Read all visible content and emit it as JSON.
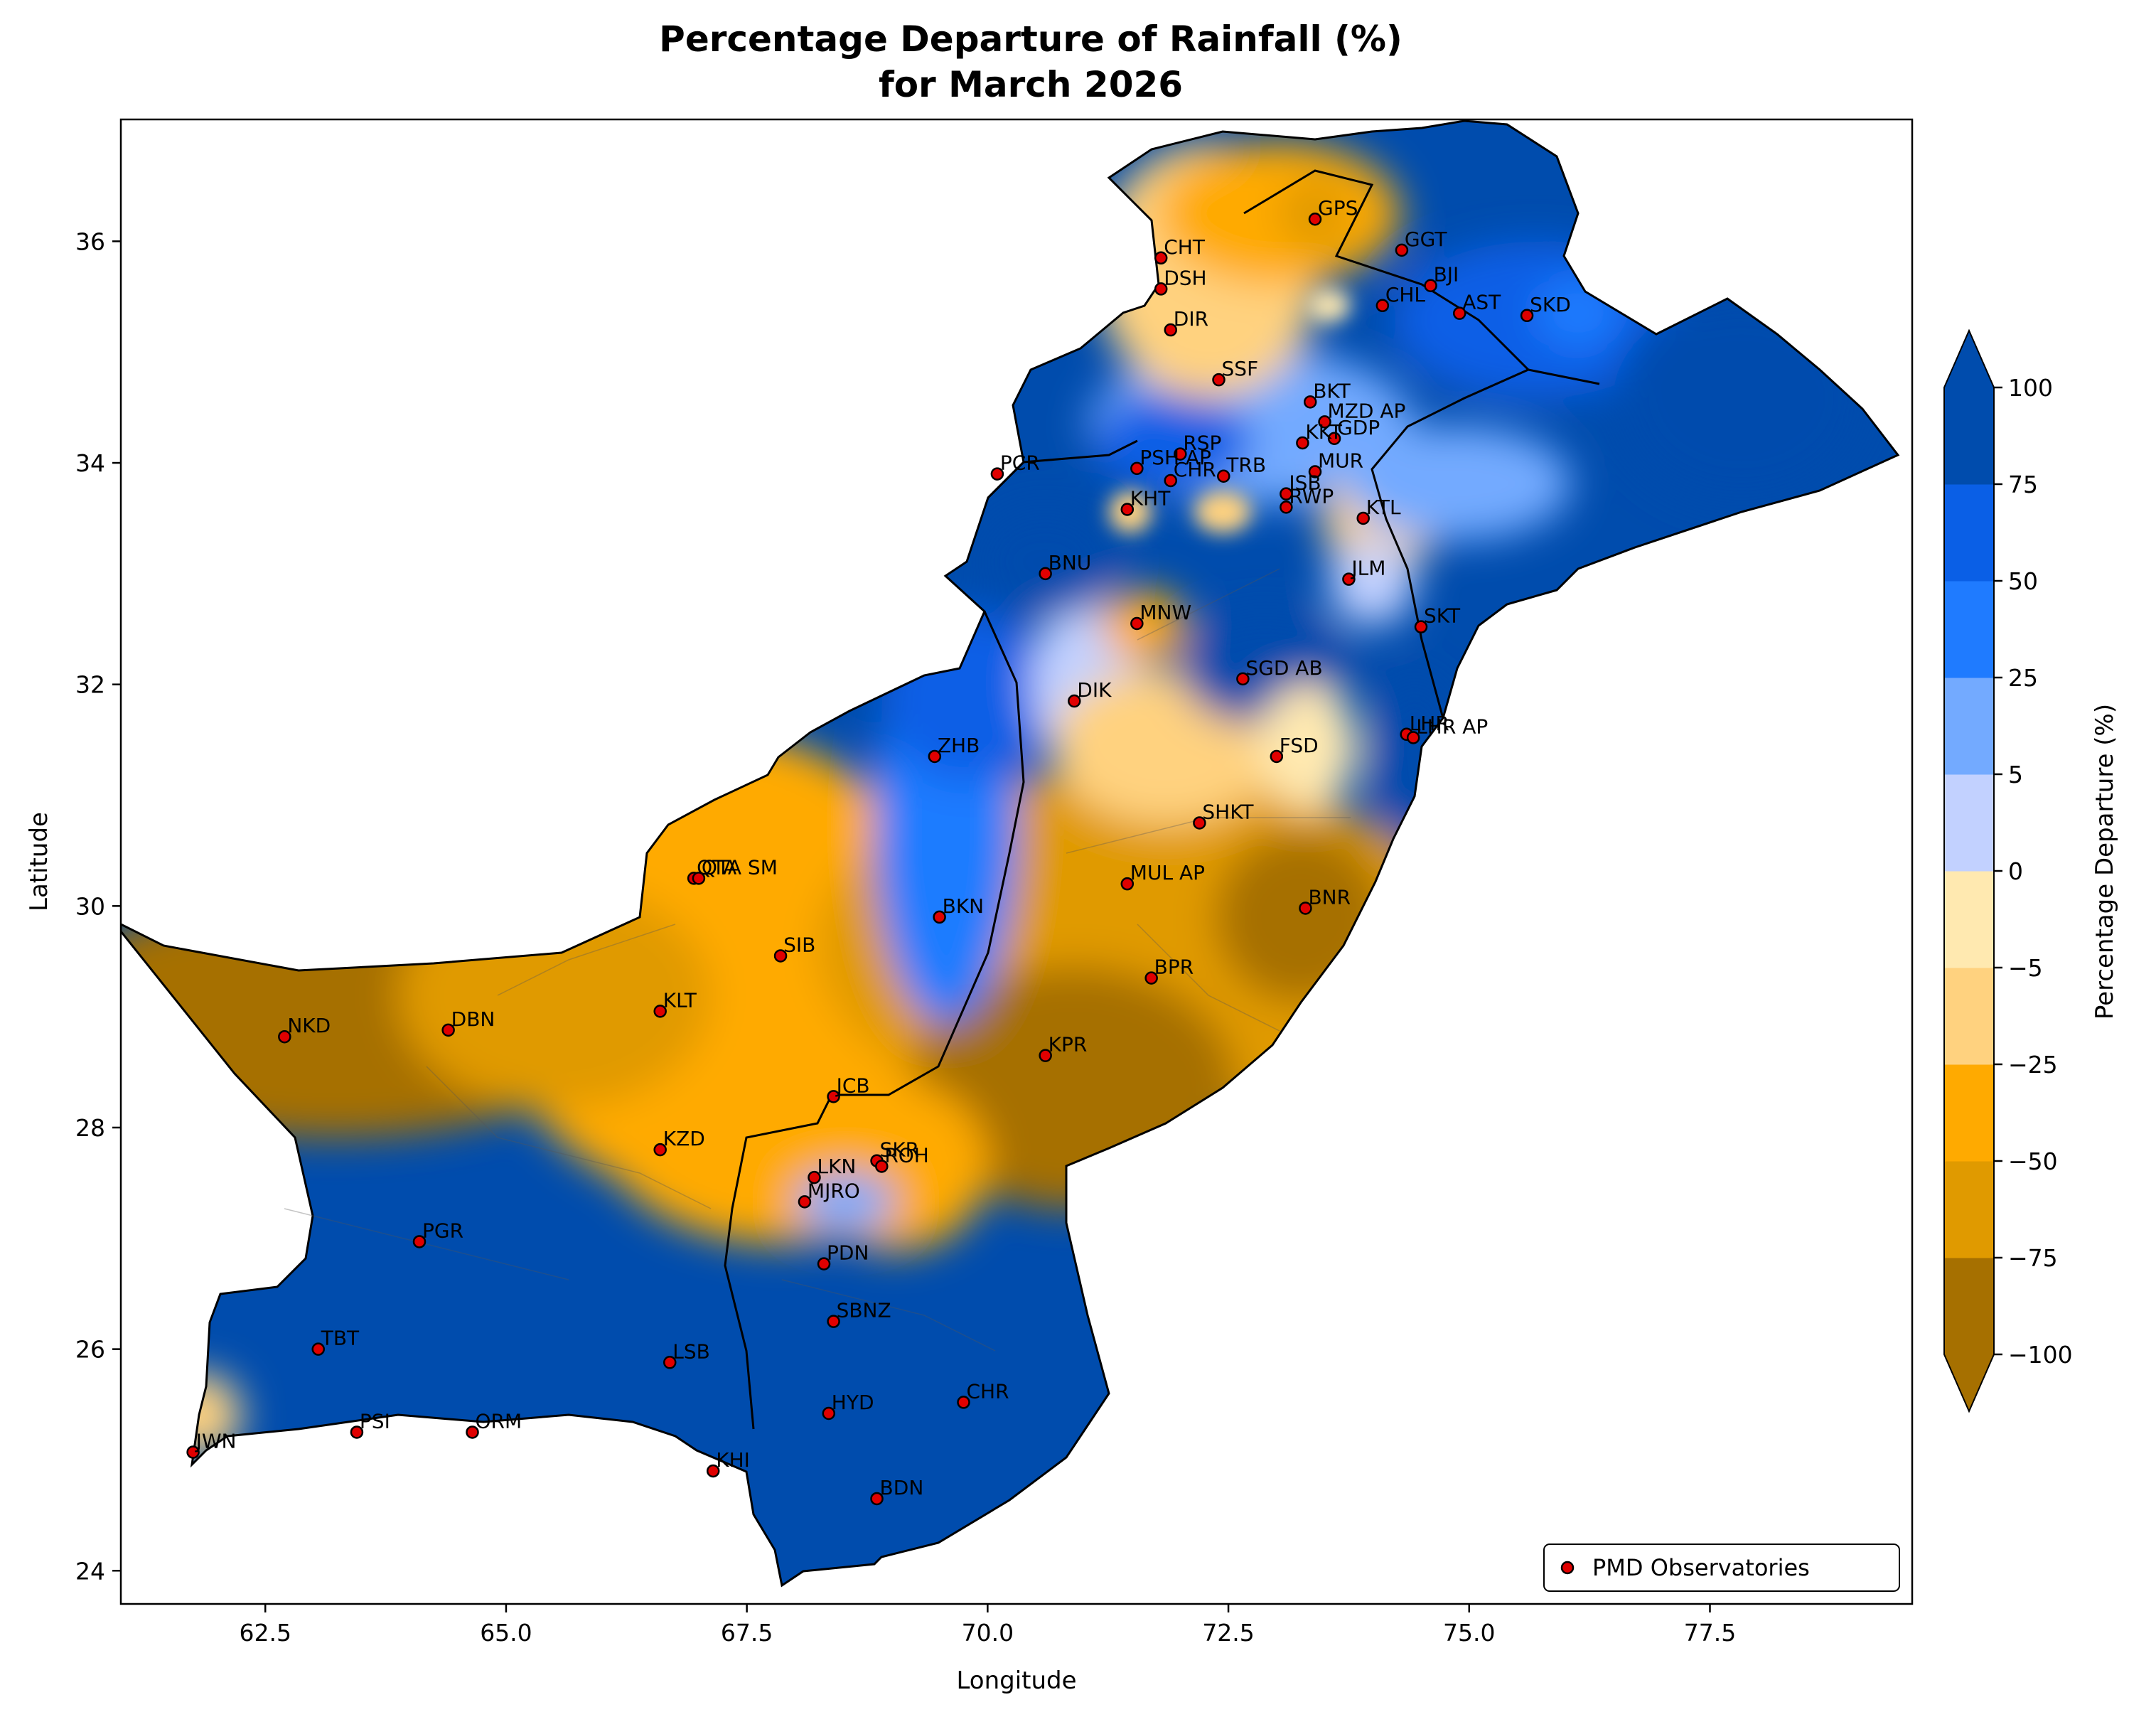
{
  "title_line1": "Percentage Departure of Rainfall (%)",
  "title_line2": "for March 2026",
  "xlabel": "Longitude",
  "ylabel": "Latitude",
  "x_ticks": [
    "62.5",
    "65.0",
    "67.5",
    "70.0",
    "72.5",
    "75.0",
    "77.5"
  ],
  "y_ticks": [
    "24",
    "26",
    "28",
    "30",
    "32",
    "34",
    "36"
  ],
  "xlim": [
    61.0,
    79.6
  ],
  "ylim": [
    23.7,
    37.1
  ],
  "colorbar": {
    "label": "Percentage Departure (%)",
    "levels": [
      -100,
      -75,
      -50,
      -25,
      -5,
      0,
      5,
      25,
      50,
      75,
      100
    ],
    "tick_labels": [
      "−100",
      "−75",
      "−50",
      "−25",
      "−5",
      "0",
      "5",
      "25",
      "50",
      "75",
      "100"
    ],
    "colors": [
      "#a67000",
      "#e09a00",
      "#ffaa00",
      "#ffd27f",
      "#ffe9b0",
      "#c2d1ff",
      "#73aaff",
      "#1f7bff",
      "#0a5fe6",
      "#004cad"
    ],
    "over_color": "#004cad",
    "under_color": "#a67000"
  },
  "legend": {
    "label": "PMD Observatories",
    "position": "lower-right"
  },
  "stations": [
    {
      "name": "GPS",
      "lon": 73.4,
      "lat": 36.2
    },
    {
      "name": "CHT",
      "lon": 71.8,
      "lat": 35.85
    },
    {
      "name": "GGT",
      "lon": 74.3,
      "lat": 35.92
    },
    {
      "name": "BJI",
      "lon": 74.6,
      "lat": 35.6
    },
    {
      "name": "DSH",
      "lon": 71.8,
      "lat": 35.57
    },
    {
      "name": "CHL",
      "lon": 74.1,
      "lat": 35.42
    },
    {
      "name": "AST",
      "lon": 74.9,
      "lat": 35.35
    },
    {
      "name": "SKD",
      "lon": 75.6,
      "lat": 35.33
    },
    {
      "name": "DIR",
      "lon": 71.9,
      "lat": 35.2
    },
    {
      "name": "SSF",
      "lon": 72.4,
      "lat": 34.75
    },
    {
      "name": "BKT",
      "lon": 73.35,
      "lat": 34.55
    },
    {
      "name": "MZD AP",
      "lon": 73.5,
      "lat": 34.37
    },
    {
      "name": "GDP",
      "lon": 73.6,
      "lat": 34.22
    },
    {
      "name": "KKT",
      "lon": 73.27,
      "lat": 34.18
    },
    {
      "name": "RSP",
      "lon": 72.0,
      "lat": 34.08
    },
    {
      "name": "PSH AP",
      "lon": 71.55,
      "lat": 33.95
    },
    {
      "name": "CHR",
      "lon": 71.9,
      "lat": 33.84
    },
    {
      "name": "TRB",
      "lon": 72.45,
      "lat": 33.88
    },
    {
      "name": "MUR",
      "lon": 73.4,
      "lat": 33.92
    },
    {
      "name": "PCR",
      "lon": 70.1,
      "lat": 33.9
    },
    {
      "name": "ISB",
      "lon": 73.1,
      "lat": 33.72
    },
    {
      "name": "RWP",
      "lon": 73.1,
      "lat": 33.6
    },
    {
      "name": "KTL",
      "lon": 73.9,
      "lat": 33.5
    },
    {
      "name": "KHT",
      "lon": 71.45,
      "lat": 33.58
    },
    {
      "name": "BNU",
      "lon": 70.6,
      "lat": 33.0
    },
    {
      "name": "JLM",
      "lon": 73.75,
      "lat": 32.95
    },
    {
      "name": "MNW",
      "lon": 71.55,
      "lat": 32.55
    },
    {
      "name": "SKT",
      "lon": 74.5,
      "lat": 32.52
    },
    {
      "name": "SGD AB",
      "lon": 72.65,
      "lat": 32.05
    },
    {
      "name": "DIK",
      "lon": 70.9,
      "lat": 31.85
    },
    {
      "name": "LHR",
      "lon": 74.35,
      "lat": 31.55
    },
    {
      "name": "LHR AP",
      "lon": 74.42,
      "lat": 31.52
    },
    {
      "name": "FSD",
      "lon": 73.0,
      "lat": 31.35
    },
    {
      "name": "ZHB",
      "lon": 69.45,
      "lat": 31.35
    },
    {
      "name": "SHKT",
      "lon": 72.2,
      "lat": 30.75
    },
    {
      "name": "QTA",
      "lon": 66.95,
      "lat": 30.25
    },
    {
      "name": "QTA SM",
      "lon": 67.0,
      "lat": 30.25
    },
    {
      "name": "MUL AP",
      "lon": 71.45,
      "lat": 30.2
    },
    {
      "name": "BNR",
      "lon": 73.3,
      "lat": 29.98
    },
    {
      "name": "BKN",
      "lon": 69.5,
      "lat": 29.9
    },
    {
      "name": "SIB",
      "lon": 67.85,
      "lat": 29.55
    },
    {
      "name": "BPR",
      "lon": 71.7,
      "lat": 29.35
    },
    {
      "name": "KLT",
      "lon": 66.6,
      "lat": 29.05
    },
    {
      "name": "NKD",
      "lon": 62.7,
      "lat": 28.82
    },
    {
      "name": "DBN",
      "lon": 64.4,
      "lat": 28.88
    },
    {
      "name": "KPR",
      "lon": 70.6,
      "lat": 28.65
    },
    {
      "name": "JCB",
      "lon": 68.4,
      "lat": 28.28
    },
    {
      "name": "KZD",
      "lon": 66.6,
      "lat": 27.8
    },
    {
      "name": "SKR",
      "lon": 68.85,
      "lat": 27.7
    },
    {
      "name": "ROH",
      "lon": 68.9,
      "lat": 27.65
    },
    {
      "name": "LKN",
      "lon": 68.2,
      "lat": 27.55
    },
    {
      "name": "MJRO",
      "lon": 68.1,
      "lat": 27.33
    },
    {
      "name": "PGR",
      "lon": 64.1,
      "lat": 26.97
    },
    {
      "name": "PDN",
      "lon": 68.3,
      "lat": 26.77
    },
    {
      "name": "SBNZ",
      "lon": 68.4,
      "lat": 26.25
    },
    {
      "name": "TBT",
      "lon": 63.05,
      "lat": 26.0
    },
    {
      "name": "LSB",
      "lon": 66.7,
      "lat": 25.88
    },
    {
      "name": "CHR",
      "lon": 69.75,
      "lat": 25.52
    },
    {
      "name": "HYD",
      "lon": 68.35,
      "lat": 25.42
    },
    {
      "name": "PSI",
      "lon": 63.45,
      "lat": 25.25
    },
    {
      "name": "ORM",
      "lon": 64.65,
      "lat": 25.25
    },
    {
      "name": "JWN",
      "lon": 61.75,
      "lat": 25.07
    },
    {
      "name": "KHI",
      "lon": 67.15,
      "lat": 24.9
    },
    {
      "name": "BDN",
      "lon": 68.85,
      "lat": 24.65
    }
  ]
}
